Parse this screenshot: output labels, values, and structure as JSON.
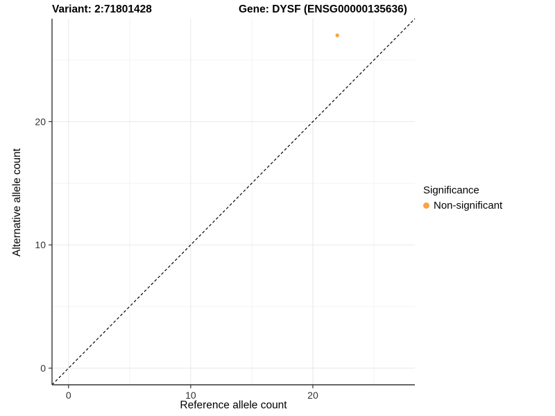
{
  "titles": {
    "variant": "Variant: 2:71801428",
    "gene": "Gene: DYSF (ENSG00000135636)"
  },
  "axes": {
    "x_label": "Reference allele count",
    "y_label": "Alternative allele count"
  },
  "legend": {
    "title": "Significance",
    "items": [
      {
        "label": "Non-significant",
        "color": "#F9A342"
      }
    ]
  },
  "chart_data": {
    "type": "scatter",
    "title": "Variant: 2:71801428 | Gene: DYSF (ENSG00000135636)",
    "xlabel": "Reference allele count",
    "ylabel": "Alternative allele count",
    "xlim": [
      -1.35,
      28.35
    ],
    "ylim": [
      -1.35,
      28.35
    ],
    "x_major_ticks": [
      0,
      10,
      20
    ],
    "x_minor_ticks": [
      5,
      15,
      25
    ],
    "y_major_ticks": [
      0,
      10,
      20
    ],
    "y_minor_ticks": [
      5,
      15,
      25
    ],
    "grid": true,
    "legend_position": "right",
    "series": [
      {
        "name": "Non-significant",
        "color": "#F9A342",
        "point_radius": 2.7,
        "points": [
          {
            "x": 22,
            "y": 27
          }
        ]
      }
    ],
    "reference_line": {
      "type": "abline",
      "slope": 1,
      "intercept": 0,
      "style": "dashed",
      "color": "#000000"
    },
    "style": {
      "grid_major": "#E7E7E7",
      "grid_minor": "#F3F3F3",
      "axis_line": "#333333",
      "tick_color": "#333333"
    }
  }
}
